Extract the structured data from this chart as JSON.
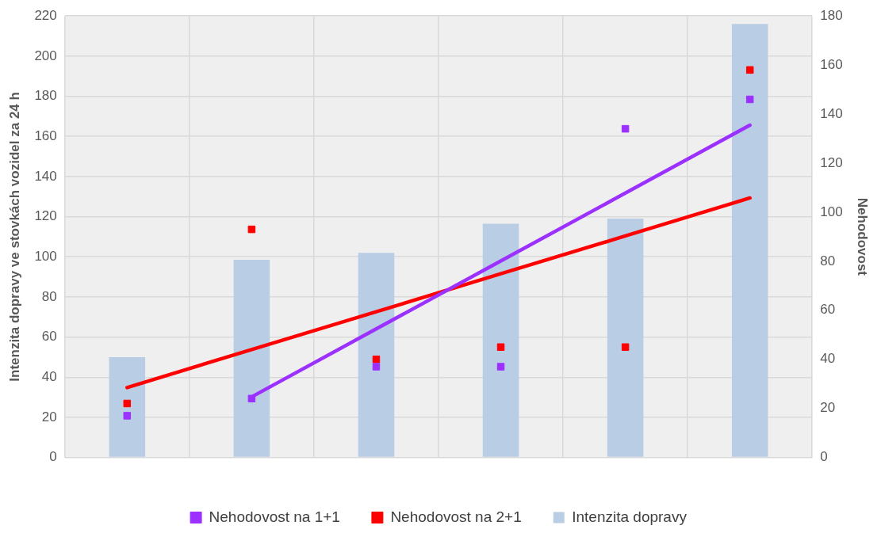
{
  "chart_data": {
    "type": "bar",
    "ylabel": "Intenzita dopravy ve stovkách vozidel za 24 h",
    "y2label": "Nehodovost",
    "categories": [
      null,
      null,
      null,
      null,
      null,
      null
    ],
    "series": [
      {
        "name": "Intenzita dopravy",
        "color": "#b9cde5",
        "values": [
          50,
          98.5,
          102,
          116.5,
          119,
          216
        ]
      },
      {
        "type": "scatter",
        "name": "Nehodovost na 1+1",
        "color": "#9b30ff",
        "axis": "y2",
        "marker": "square",
        "values": [
          17,
          24,
          37,
          37,
          134,
          146
        ]
      },
      {
        "type": "scatter",
        "name": "Nehodovost na 2+1",
        "color": "#ff0000",
        "axis": "y2",
        "marker": "square",
        "values": [
          22,
          93,
          40,
          45,
          45,
          158
        ]
      },
      {
        "type": "line",
        "color": "#9b30ff",
        "axis": "y2",
        "line_style": "solid",
        "marker": "none",
        "values": [
          null,
          24.7,
          52.4,
          80.1,
          107.8,
          135.5
        ]
      },
      {
        "type": "line",
        "color": "#ff0000",
        "axis": "y2",
        "line_style": "solid",
        "marker": "none",
        "values": [
          28.5,
          44,
          59.4,
          74.9,
          90.3,
          105.8
        ]
      }
    ],
    "ylim": [
      0,
      220
    ],
    "yticks": [
      0,
      20,
      40,
      60,
      80,
      100,
      120,
      140,
      160,
      180,
      200,
      220
    ],
    "y2lim": [
      0,
      180
    ],
    "y2ticks": [
      0,
      20,
      40,
      60,
      80,
      100,
      120,
      140,
      160,
      180
    ],
    "grid": true,
    "legend": "bottom"
  }
}
